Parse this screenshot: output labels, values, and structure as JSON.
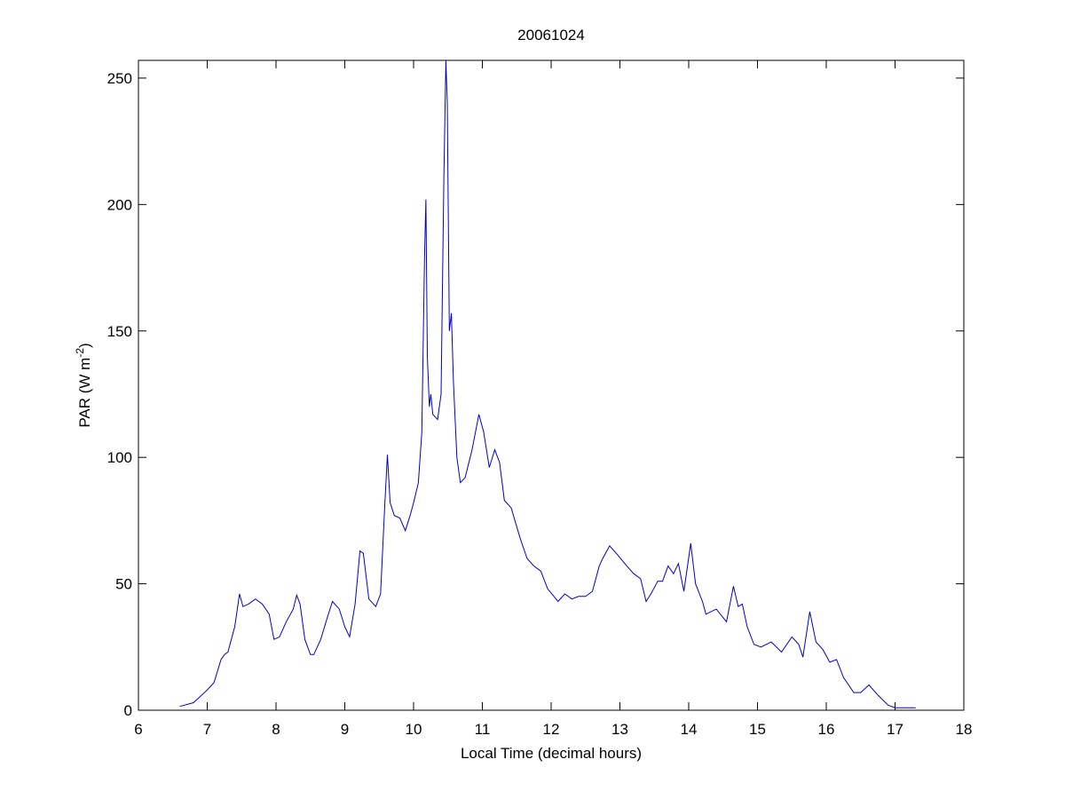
{
  "chart_data": {
    "type": "line",
    "title": "20061024",
    "xlabel": "Local Time (decimal hours)",
    "ylabel": [
      "PAR (W m",
      "-2",
      ")"
    ],
    "xlim": [
      6,
      18
    ],
    "xticks": [
      6,
      7,
      8,
      9,
      10,
      11,
      12,
      13,
      14,
      15,
      16,
      17,
      18
    ],
    "ylim": [
      0,
      257
    ],
    "yticks": [
      0,
      50,
      100,
      150,
      200,
      250
    ],
    "grid": false,
    "series": [
      {
        "color": "#0000cc",
        "x": [
          6.6,
          6.8,
          7.0,
          7.1,
          7.2,
          7.25,
          7.3,
          7.4,
          7.47,
          7.52,
          7.6,
          7.7,
          7.8,
          7.9,
          7.97,
          8.05,
          8.15,
          8.25,
          8.3,
          8.35,
          8.42,
          8.5,
          8.55,
          8.65,
          8.75,
          8.82,
          8.92,
          9.0,
          9.07,
          9.15,
          9.22,
          9.27,
          9.35,
          9.45,
          9.52,
          9.58,
          9.62,
          9.66,
          9.72,
          9.8,
          9.88,
          9.95,
          10.0,
          10.07,
          10.12,
          10.16,
          10.18,
          10.2,
          10.23,
          10.25,
          10.28,
          10.35,
          10.4,
          10.44,
          10.47,
          10.49,
          10.52,
          10.55,
          10.58,
          10.63,
          10.68,
          10.75,
          10.85,
          10.95,
          11.02,
          11.1,
          11.18,
          11.25,
          11.32,
          11.42,
          11.55,
          11.65,
          11.75,
          11.85,
          11.95,
          12.1,
          12.2,
          12.3,
          12.4,
          12.5,
          12.6,
          12.7,
          12.75,
          12.85,
          12.95,
          13.1,
          13.2,
          13.3,
          13.38,
          13.45,
          13.55,
          13.62,
          13.7,
          13.78,
          13.85,
          13.93,
          14.03,
          14.1,
          14.2,
          14.25,
          14.4,
          14.55,
          14.65,
          14.72,
          14.78,
          14.85,
          14.95,
          15.05,
          15.2,
          15.35,
          15.5,
          15.6,
          15.66,
          15.76,
          15.85,
          15.95,
          16.05,
          16.15,
          16.25,
          16.4,
          16.5,
          16.62,
          16.75,
          16.9,
          17.0,
          17.3
        ],
        "values": [
          1.5,
          3,
          8,
          11,
          20,
          22,
          23,
          33,
          46,
          41,
          42,
          44,
          42,
          38,
          28,
          29,
          35,
          40,
          45.5,
          42,
          28,
          22,
          22,
          28,
          37,
          43,
          40,
          33,
          29,
          42,
          63,
          62,
          44,
          41,
          46,
          80,
          101,
          82,
          77,
          76,
          71,
          77,
          82,
          90,
          110,
          180,
          202,
          140,
          120,
          125,
          117,
          115,
          125,
          210,
          257,
          240,
          150,
          157,
          130,
          100,
          90,
          92,
          103,
          117,
          110,
          96,
          103,
          98,
          83,
          80,
          68,
          60,
          57,
          55,
          48,
          43,
          46,
          44,
          45,
          45,
          47,
          57,
          60,
          65,
          62,
          57,
          54,
          52,
          43,
          46,
          51,
          51,
          57,
          54,
          58,
          47,
          66,
          50,
          43,
          38,
          40,
          35,
          49,
          41,
          42,
          33,
          26,
          25,
          27,
          23,
          29,
          26,
          21,
          39,
          27,
          24,
          19,
          20,
          13,
          7,
          7,
          10,
          6,
          2,
          1,
          1
        ]
      }
    ]
  }
}
